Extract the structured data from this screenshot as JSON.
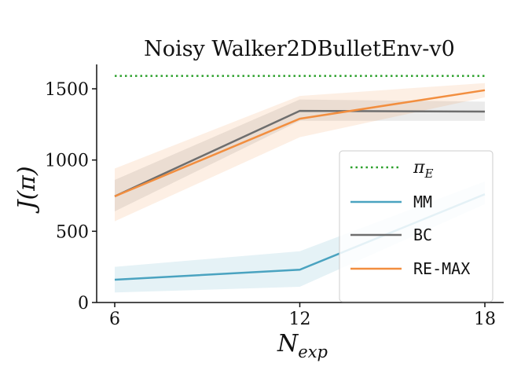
{
  "chart_data": {
    "type": "line",
    "title": "Noisy Walker2DBulletEnv-v0",
    "xlabel_main": "N",
    "xlabel_sub": "exp",
    "ylabel": "J(π)",
    "x": [
      6,
      12,
      18
    ],
    "x_ticks": [
      "6",
      "12",
      "18"
    ],
    "y_ticks": [
      "0",
      "500",
      "1000",
      "1500"
    ],
    "xlim": [
      5.5,
      18.5
    ],
    "ylim": [
      0,
      1650
    ],
    "grid": false,
    "legend_position": "lower-right",
    "reference_line": {
      "name": "π",
      "name_sub": "E",
      "value": 1590,
      "color": "#2ca02c",
      "style": "dotted"
    },
    "series": [
      {
        "name": "MM",
        "color": "#4aa3c0",
        "values": [
          160,
          230,
          760
        ],
        "lower": [
          70,
          110,
          690
        ],
        "upper": [
          250,
          360,
          850
        ]
      },
      {
        "name": "BC",
        "color": "#6e6e6e",
        "values": [
          745,
          1345,
          1340
        ],
        "lower": [
          640,
          1275,
          1275
        ],
        "upper": [
          860,
          1425,
          1410
        ]
      },
      {
        "name": "RE-MAX",
        "color": "#f28e3f",
        "values": [
          745,
          1290,
          1490
        ],
        "lower": [
          570,
          1160,
          1440
        ],
        "upper": [
          940,
          1450,
          1540
        ]
      }
    ]
  }
}
